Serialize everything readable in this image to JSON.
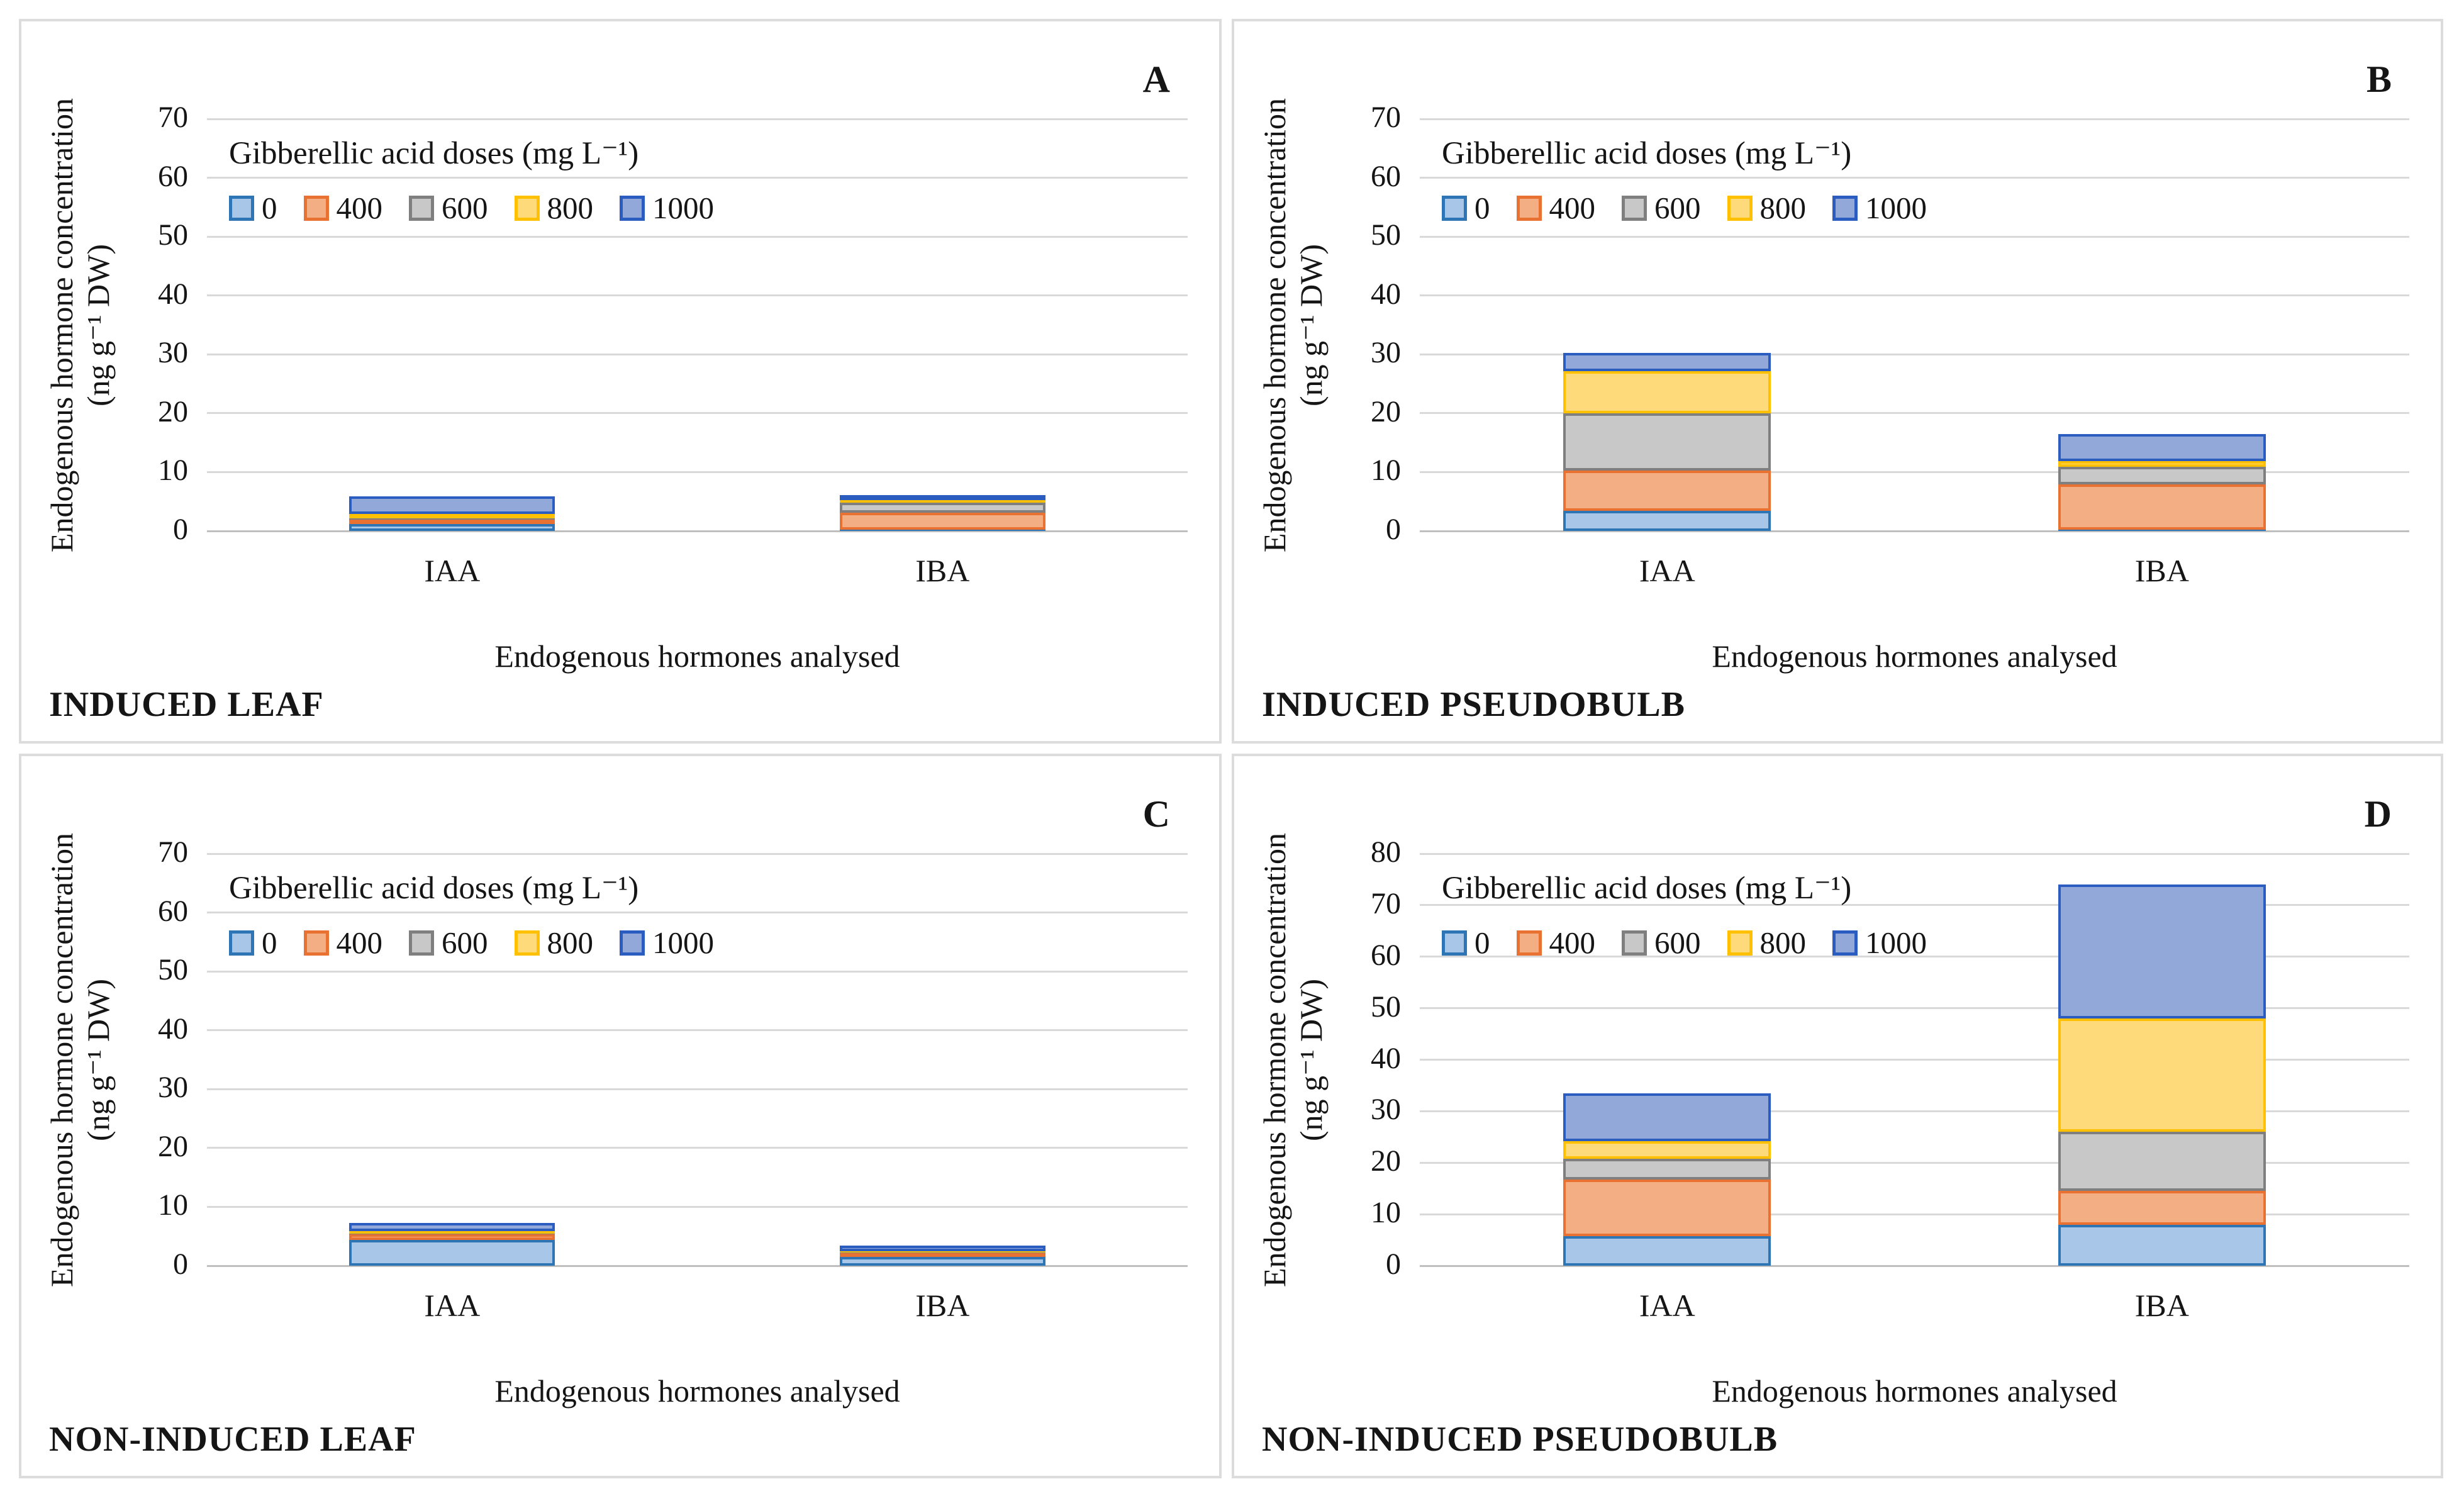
{
  "figure": {
    "legend_title": "Gibberellic acid doses (mg L⁻¹)",
    "ylabel_line1": "Endogenous hormone concentration",
    "ylabel_line2": "(ng g⁻¹ DW)",
    "xlabel": "Endogenous hormones analysed",
    "series_colors": [
      {
        "name": "0",
        "fill": "#A8C6E8",
        "border": "#2E75B6"
      },
      {
        "name": "400",
        "fill": "#F4AE84",
        "border": "#E97132"
      },
      {
        "name": "600",
        "fill": "#C8C8C8",
        "border": "#7F7F7F"
      },
      {
        "name": "800",
        "fill": "#FFDA7B",
        "border": "#FFC000"
      },
      {
        "name": "1000",
        "fill": "#92A8D8",
        "border": "#2B5CC0"
      }
    ]
  },
  "chart_data": [
    {
      "type": "bar",
      "stacked": true,
      "panel_label": "A",
      "caption": "INDUCED LEAF",
      "title": "",
      "xlabel": "Endogenous hormones analysed",
      "ylabel": "Endogenous hormone concentration (ng g⁻¹ DW)",
      "legend_title": "Gibberellic acid doses (mg L⁻¹)",
      "legend_position": "inside top-left",
      "grid": true,
      "ylim": [
        0,
        70
      ],
      "ytick_step": 10,
      "categories": [
        "IAA",
        "IBA"
      ],
      "series": [
        {
          "name": "0",
          "values": [
            1.2,
            0.2
          ]
        },
        {
          "name": "400",
          "values": [
            0.7,
            2.9
          ]
        },
        {
          "name": "600",
          "values": [
            0.2,
            1.7
          ]
        },
        {
          "name": "800",
          "values": [
            0.8,
            0.4
          ]
        },
        {
          "name": "1000",
          "values": [
            3.0,
            0.6
          ]
        }
      ]
    },
    {
      "type": "bar",
      "stacked": true,
      "panel_label": "B",
      "caption": "INDUCED PSEUDOBULB",
      "title": "",
      "xlabel": "Endogenous hormones analysed",
      "ylabel": "Endogenous hormone concentration (ng g⁻¹ DW)",
      "legend_title": "Gibberellic acid doses (mg L⁻¹)",
      "legend_position": "inside top-left",
      "grid": true,
      "ylim": [
        0,
        70
      ],
      "ytick_step": 10,
      "categories": [
        "IAA",
        "IBA"
      ],
      "series": [
        {
          "name": "0",
          "values": [
            3.4,
            0.2
          ]
        },
        {
          "name": "400",
          "values": [
            6.9,
            7.7
          ]
        },
        {
          "name": "600",
          "values": [
            9.7,
            3.0
          ]
        },
        {
          "name": "800",
          "values": [
            7.2,
            1.0
          ]
        },
        {
          "name": "1000",
          "values": [
            3.0,
            4.6
          ]
        }
      ]
    },
    {
      "type": "bar",
      "stacked": true,
      "panel_label": "C",
      "caption": "NON-INDUCED LEAF",
      "title": "",
      "xlabel": "Endogenous hormones analysed",
      "ylabel": "Endogenous hormone concentration (ng g⁻¹ DW)",
      "legend_title": "Gibberellic acid doses (mg L⁻¹)",
      "legend_position": "inside top-left",
      "grid": true,
      "ylim": [
        0,
        70
      ],
      "ytick_step": 10,
      "categories": [
        "IAA",
        "IBA"
      ],
      "series": [
        {
          "name": "0",
          "values": [
            4.4,
            1.5
          ]
        },
        {
          "name": "400",
          "values": [
            0.9,
            0.6
          ]
        },
        {
          "name": "600",
          "values": [
            0.1,
            0.1
          ]
        },
        {
          "name": "800",
          "values": [
            0.5,
            0.3
          ]
        },
        {
          "name": "1000",
          "values": [
            1.4,
            0.9
          ]
        }
      ]
    },
    {
      "type": "bar",
      "stacked": true,
      "panel_label": "D",
      "caption": "NON-INDUCED PSEUDOBULB",
      "title": "",
      "xlabel": "Endogenous hormones analysed",
      "ylabel": "Endogenous hormone concentration (ng g⁻¹ DW)",
      "legend_title": "Gibberellic acid doses (mg L⁻¹)",
      "legend_position": "inside top-left",
      "grid": true,
      "ylim": [
        0,
        80
      ],
      "ytick_step": 10,
      "categories": [
        "IAA",
        "IBA"
      ],
      "series": [
        {
          "name": "0",
          "values": [
            5.7,
            8.0
          ]
        },
        {
          "name": "400",
          "values": [
            11.0,
            6.5
          ]
        },
        {
          "name": "600",
          "values": [
            4.1,
            11.5
          ]
        },
        {
          "name": "800",
          "values": [
            3.4,
            22.0
          ]
        },
        {
          "name": "1000",
          "values": [
            9.3,
            26.0
          ]
        }
      ]
    }
  ]
}
